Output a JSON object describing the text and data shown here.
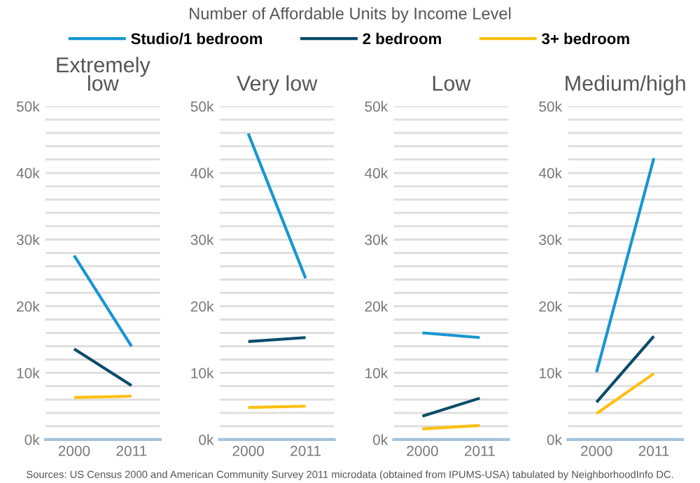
{
  "chart_data": [
    {
      "type": "line",
      "title": "Extremely low",
      "annotations": [
        "Number of Affordable Units by Income Level"
      ],
      "legend": "top",
      "grid": "y",
      "categories": [
        "2000",
        "2011"
      ],
      "ylim": [
        0,
        50000
      ],
      "yticks": [
        {
          "value": 0,
          "label": "0k"
        },
        {
          "value": 2000,
          "label": null
        },
        {
          "value": 4000,
          "label": null
        },
        {
          "value": 6000,
          "label": null
        },
        {
          "value": 8000,
          "label": null
        },
        {
          "value": 10000,
          "label": "10k"
        },
        {
          "value": 12000,
          "label": null
        },
        {
          "value": 14000,
          "label": null
        },
        {
          "value": 16000,
          "label": null
        },
        {
          "value": 18000,
          "label": null
        },
        {
          "value": 20000,
          "label": "20k"
        },
        {
          "value": 22000,
          "label": null
        },
        {
          "value": 24000,
          "label": null
        },
        {
          "value": 26000,
          "label": null
        },
        {
          "value": 28000,
          "label": null
        },
        {
          "value": 30000,
          "label": "30k"
        },
        {
          "value": 32000,
          "label": null
        },
        {
          "value": 34000,
          "label": null
        },
        {
          "value": 36000,
          "label": null
        },
        {
          "value": 38000,
          "label": null
        },
        {
          "value": 40000,
          "label": "40k"
        },
        {
          "value": 42000,
          "label": null
        },
        {
          "value": 44000,
          "label": null
        },
        {
          "value": 46000,
          "label": null
        },
        {
          "value": 48000,
          "label": null
        },
        {
          "value": 50000,
          "label": "50k"
        }
      ],
      "series": [
        {
          "name": "Studio/1 bedroom",
          "color": "#1696d2",
          "values": [
            27600,
            14000
          ]
        },
        {
          "name": "2 bedroom",
          "color": "#0a4c6a",
          "values": [
            13600,
            8100
          ]
        },
        {
          "name": "3+ bedroom",
          "color": "#fdbf11",
          "values": [
            6300,
            6500
          ]
        }
      ]
    },
    {
      "type": "line",
      "title": "Very low",
      "grid": "y",
      "categories": [
        "2000",
        "2011"
      ],
      "ylim": [
        0,
        50000
      ],
      "yticks": [
        {
          "value": 0,
          "label": "0k"
        },
        {
          "value": 2000,
          "label": null
        },
        {
          "value": 4000,
          "label": null
        },
        {
          "value": 6000,
          "label": null
        },
        {
          "value": 8000,
          "label": null
        },
        {
          "value": 10000,
          "label": "10k"
        },
        {
          "value": 12000,
          "label": null
        },
        {
          "value": 14000,
          "label": null
        },
        {
          "value": 16000,
          "label": null
        },
        {
          "value": 18000,
          "label": null
        },
        {
          "value": 20000,
          "label": "20k"
        },
        {
          "value": 22000,
          "label": null
        },
        {
          "value": 24000,
          "label": null
        },
        {
          "value": 26000,
          "label": null
        },
        {
          "value": 28000,
          "label": null
        },
        {
          "value": 30000,
          "label": "30k"
        },
        {
          "value": 32000,
          "label": null
        },
        {
          "value": 34000,
          "label": null
        },
        {
          "value": 36000,
          "label": null
        },
        {
          "value": 38000,
          "label": null
        },
        {
          "value": 40000,
          "label": "40k"
        },
        {
          "value": 42000,
          "label": null
        },
        {
          "value": 44000,
          "label": null
        },
        {
          "value": 46000,
          "label": null
        },
        {
          "value": 48000,
          "label": null
        },
        {
          "value": 50000,
          "label": "50k"
        }
      ],
      "series": [
        {
          "color": "#1696d2",
          "values": [
            45900,
            24200
          ]
        },
        {
          "color": "#0a4c6a",
          "values": [
            14700,
            15300
          ]
        },
        {
          "color": "#fdbf11",
          "values": [
            4800,
            5000
          ]
        }
      ]
    },
    {
      "type": "line",
      "title": "Low",
      "grid": "y",
      "categories": [
        "2000",
        "2011"
      ],
      "ylim": [
        0,
        50000
      ],
      "yticks": [
        {
          "value": 0,
          "label": "0k"
        },
        {
          "value": 2000,
          "label": null
        },
        {
          "value": 4000,
          "label": null
        },
        {
          "value": 6000,
          "label": null
        },
        {
          "value": 8000,
          "label": null
        },
        {
          "value": 10000,
          "label": "10k"
        },
        {
          "value": 12000,
          "label": null
        },
        {
          "value": 14000,
          "label": null
        },
        {
          "value": 16000,
          "label": null
        },
        {
          "value": 18000,
          "label": null
        },
        {
          "value": 20000,
          "label": "20k"
        },
        {
          "value": 22000,
          "label": null
        },
        {
          "value": 24000,
          "label": null
        },
        {
          "value": 26000,
          "label": null
        },
        {
          "value": 28000,
          "label": null
        },
        {
          "value": 30000,
          "label": "30k"
        },
        {
          "value": 32000,
          "label": null
        },
        {
          "value": 34000,
          "label": null
        },
        {
          "value": 36000,
          "label": null
        },
        {
          "value": 38000,
          "label": null
        },
        {
          "value": 40000,
          "label": "40k"
        },
        {
          "value": 42000,
          "label": null
        },
        {
          "value": 44000,
          "label": null
        },
        {
          "value": 46000,
          "label": null
        },
        {
          "value": 48000,
          "label": null
        },
        {
          "value": 50000,
          "label": "50k"
        }
      ],
      "series": [
        {
          "color": "#1696d2",
          "values": [
            16000,
            15300
          ]
        },
        {
          "color": "#0a4c6a",
          "values": [
            3500,
            6200
          ]
        },
        {
          "color": "#fdbf11",
          "values": [
            1600,
            2100
          ]
        }
      ]
    },
    {
      "type": "line",
      "title": "Medium/high",
      "grid": "y",
      "annotations": [
        "Sources: US Census 2000 and American Community Survey 2011 microdata (obtained from IPUMS-USA) tabulated by NeighborhoodInfo DC."
      ],
      "categories": [
        "2000",
        "2011"
      ],
      "ylim": [
        0,
        50000
      ],
      "yticks": [
        {
          "value": 0,
          "label": "0k"
        },
        {
          "value": 2000,
          "label": null
        },
        {
          "value": 4000,
          "label": null
        },
        {
          "value": 6000,
          "label": null
        },
        {
          "value": 8000,
          "label": null
        },
        {
          "value": 10000,
          "label": "10k"
        },
        {
          "value": 12000,
          "label": null
        },
        {
          "value": 14000,
          "label": null
        },
        {
          "value": 16000,
          "label": null
        },
        {
          "value": 18000,
          "label": null
        },
        {
          "value": 20000,
          "label": "20k"
        },
        {
          "value": 22000,
          "label": null
        },
        {
          "value": 24000,
          "label": null
        },
        {
          "value": 26000,
          "label": null
        },
        {
          "value": 28000,
          "label": null
        },
        {
          "value": 30000,
          "label": "30k"
        },
        {
          "value": 32000,
          "label": null
        },
        {
          "value": 34000,
          "label": null
        },
        {
          "value": 36000,
          "label": null
        },
        {
          "value": 38000,
          "label": null
        },
        {
          "value": 40000,
          "label": "40k"
        },
        {
          "value": 42000,
          "label": null
        },
        {
          "value": 44000,
          "label": null
        },
        {
          "value": 46000,
          "label": null
        },
        {
          "value": 48000,
          "label": null
        },
        {
          "value": 50000,
          "label": "50k"
        }
      ],
      "series": [
        {
          "color": "#1696d2",
          "values": [
            10100,
            42200
          ]
        },
        {
          "color": "#0a4c6a",
          "values": [
            5600,
            15500
          ]
        },
        {
          "color": "#fdbf11",
          "values": [
            3900,
            9900
          ]
        }
      ]
    }
  ]
}
